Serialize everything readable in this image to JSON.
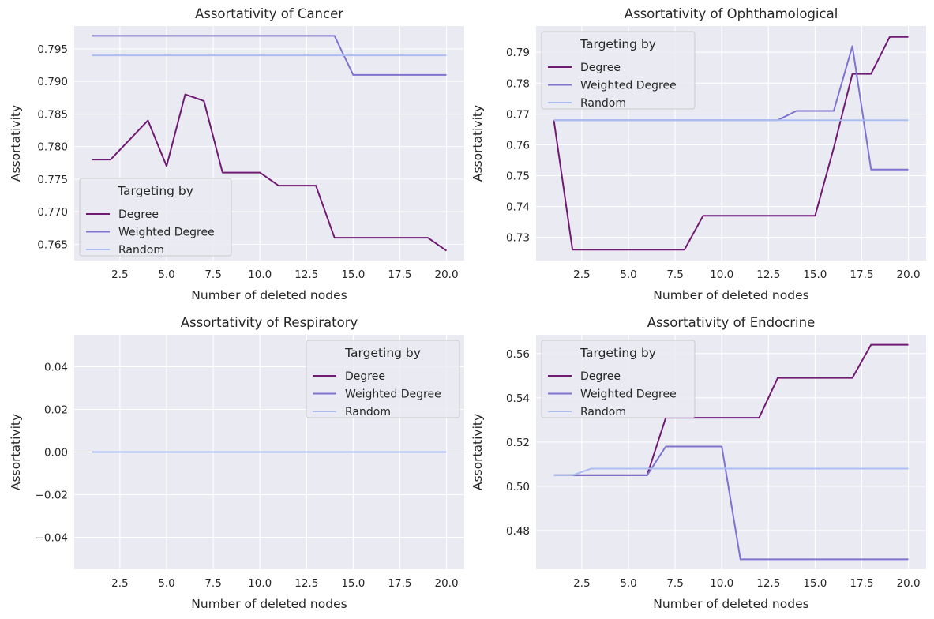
{
  "colors": {
    "Degree": "#701A72",
    "Weighted Degree": "#7E73CF",
    "Random": "#ACBDF1",
    "panel_bg": "#EAEAF2",
    "grid": "#FFFFFF"
  },
  "legend_title": "Targeting by",
  "chart_data": [
    {
      "type": "line",
      "title": "Assortativity of Cancer",
      "xlabel": "Number of deleted nodes",
      "ylabel": "Assortativity",
      "xlim": [
        0.05,
        20.95
      ],
      "ylim": [
        0.7625,
        0.7985
      ],
      "xticks": [
        2.5,
        5.0,
        7.5,
        10.0,
        12.5,
        15.0,
        17.5,
        20.0
      ],
      "xtick_labels": [
        "2.5",
        "5.0",
        "7.5",
        "10.0",
        "12.5",
        "15.0",
        "17.5",
        "20.0"
      ],
      "yticks": [
        0.765,
        0.77,
        0.775,
        0.78,
        0.785,
        0.79,
        0.795
      ],
      "ytick_labels": [
        "0.765",
        "0.770",
        "0.775",
        "0.780",
        "0.785",
        "0.790",
        "0.795"
      ],
      "grid": true,
      "legend_position": "lower-left",
      "x": [
        1,
        2,
        3,
        4,
        5,
        6,
        7,
        8,
        9,
        10,
        11,
        12,
        13,
        14,
        15,
        16,
        17,
        18,
        19,
        20
      ],
      "series": [
        {
          "name": "Degree",
          "values": [
            0.778,
            0.778,
            0.781,
            0.784,
            0.777,
            0.788,
            0.787,
            0.776,
            0.776,
            0.776,
            0.774,
            0.774,
            0.774,
            0.766,
            0.766,
            0.766,
            0.766,
            0.766,
            0.766,
            0.764
          ]
        },
        {
          "name": "Weighted Degree",
          "values": [
            0.797,
            0.797,
            0.797,
            0.797,
            0.797,
            0.797,
            0.797,
            0.797,
            0.797,
            0.797,
            0.797,
            0.797,
            0.797,
            0.797,
            0.791,
            0.791,
            0.791,
            0.791,
            0.791,
            0.791
          ]
        },
        {
          "name": "Random",
          "values": [
            0.794,
            0.794,
            0.794,
            0.794,
            0.794,
            0.794,
            0.794,
            0.794,
            0.794,
            0.794,
            0.794,
            0.794,
            0.794,
            0.794,
            0.794,
            0.794,
            0.794,
            0.794,
            0.794,
            0.794
          ]
        }
      ]
    },
    {
      "type": "line",
      "title": "Assortativity of Ophthamological",
      "xlabel": "Number of deleted nodes",
      "ylabel": "Assortativity",
      "xlim": [
        0.05,
        20.95
      ],
      "ylim": [
        0.7225,
        0.7985
      ],
      "xticks": [
        2.5,
        5.0,
        7.5,
        10.0,
        12.5,
        15.0,
        17.5,
        20.0
      ],
      "xtick_labels": [
        "2.5",
        "5.0",
        "7.5",
        "10.0",
        "12.5",
        "15.0",
        "17.5",
        "20.0"
      ],
      "yticks": [
        0.73,
        0.74,
        0.75,
        0.76,
        0.77,
        0.78,
        0.79
      ],
      "ytick_labels": [
        "0.73",
        "0.74",
        "0.75",
        "0.76",
        "0.77",
        "0.78",
        "0.79"
      ],
      "grid": true,
      "legend_position": "upper-left",
      "x": [
        1,
        2,
        3,
        4,
        5,
        6,
        7,
        8,
        9,
        10,
        11,
        12,
        13,
        14,
        15,
        16,
        17,
        18,
        19,
        20
      ],
      "series": [
        {
          "name": "Degree",
          "values": [
            0.768,
            0.726,
            0.726,
            0.726,
            0.726,
            0.726,
            0.726,
            0.726,
            0.737,
            0.737,
            0.737,
            0.737,
            0.737,
            0.737,
            0.737,
            0.759,
            0.783,
            0.783,
            0.795,
            0.795
          ]
        },
        {
          "name": "Weighted Degree",
          "values": [
            0.768,
            0.768,
            0.768,
            0.768,
            0.768,
            0.768,
            0.768,
            0.768,
            0.768,
            0.768,
            0.768,
            0.768,
            0.768,
            0.771,
            0.771,
            0.771,
            0.792,
            0.752,
            0.752,
            0.752
          ]
        },
        {
          "name": "Random",
          "values": [
            0.768,
            0.768,
            0.768,
            0.768,
            0.768,
            0.768,
            0.768,
            0.768,
            0.768,
            0.768,
            0.768,
            0.768,
            0.768,
            0.768,
            0.768,
            0.768,
            0.768,
            0.768,
            0.768,
            0.768
          ]
        }
      ]
    },
    {
      "type": "line",
      "title": "Assortativity of Respiratory",
      "xlabel": "Number of deleted nodes",
      "ylabel": "Assortativity",
      "xlim": [
        0.05,
        20.95
      ],
      "ylim": [
        -0.055,
        0.055
      ],
      "xticks": [
        2.5,
        5.0,
        7.5,
        10.0,
        12.5,
        15.0,
        17.5,
        20.0
      ],
      "xtick_labels": [
        "2.5",
        "5.0",
        "7.5",
        "10.0",
        "12.5",
        "15.0",
        "17.5",
        "20.0"
      ],
      "yticks": [
        -0.04,
        -0.02,
        0.0,
        0.02,
        0.04
      ],
      "ytick_labels": [
        "−0.04",
        "−0.02",
        "0.00",
        "0.02",
        "0.04"
      ],
      "grid": true,
      "legend_position": "upper-right",
      "x": [
        1,
        2,
        3,
        4,
        5,
        6,
        7,
        8,
        9,
        10,
        11,
        12,
        13,
        14,
        15,
        16,
        17,
        18,
        19,
        20
      ],
      "series": [
        {
          "name": "Degree",
          "values": [
            0,
            0,
            0,
            0,
            0,
            0,
            0,
            0,
            0,
            0,
            0,
            0,
            0,
            0,
            0,
            0,
            0,
            0,
            0,
            0
          ]
        },
        {
          "name": "Weighted Degree",
          "values": [
            0,
            0,
            0,
            0,
            0,
            0,
            0,
            0,
            0,
            0,
            0,
            0,
            0,
            0,
            0,
            0,
            0,
            0,
            0,
            0
          ]
        },
        {
          "name": "Random",
          "values": [
            0,
            0,
            0,
            0,
            0,
            0,
            0,
            0,
            0,
            0,
            0,
            0,
            0,
            0,
            0,
            0,
            0,
            0,
            0,
            0
          ]
        }
      ]
    },
    {
      "type": "line",
      "title": "Assortativity of Endocrine",
      "xlabel": "Number of deleted nodes",
      "ylabel": "Assortativity",
      "xlim": [
        0.05,
        20.95
      ],
      "ylim": [
        0.4625,
        0.5685
      ],
      "xticks": [
        2.5,
        5.0,
        7.5,
        10.0,
        12.5,
        15.0,
        17.5,
        20.0
      ],
      "xtick_labels": [
        "2.5",
        "5.0",
        "7.5",
        "10.0",
        "12.5",
        "15.0",
        "17.5",
        "20.0"
      ],
      "yticks": [
        0.48,
        0.5,
        0.52,
        0.54,
        0.56
      ],
      "ytick_labels": [
        "0.48",
        "0.50",
        "0.52",
        "0.54",
        "0.56"
      ],
      "grid": true,
      "legend_position": "upper-left",
      "x": [
        1,
        2,
        3,
        4,
        5,
        6,
        7,
        8,
        9,
        10,
        11,
        12,
        13,
        14,
        15,
        16,
        17,
        18,
        19,
        20
      ],
      "series": [
        {
          "name": "Degree",
          "values": [
            0.505,
            0.505,
            0.505,
            0.505,
            0.505,
            0.505,
            0.531,
            0.531,
            0.531,
            0.531,
            0.531,
            0.531,
            0.549,
            0.549,
            0.549,
            0.549,
            0.549,
            0.564,
            0.564,
            0.564
          ]
        },
        {
          "name": "Weighted Degree",
          "values": [
            0.505,
            0.505,
            0.505,
            0.505,
            0.505,
            0.505,
            0.518,
            0.518,
            0.518,
            0.518,
            0.467,
            0.467,
            0.467,
            0.467,
            0.467,
            0.467,
            0.467,
            0.467,
            0.467,
            0.467
          ]
        },
        {
          "name": "Random",
          "values": [
            0.505,
            0.505,
            0.508,
            0.508,
            0.508,
            0.508,
            0.508,
            0.508,
            0.508,
            0.508,
            0.508,
            0.508,
            0.508,
            0.508,
            0.508,
            0.508,
            0.508,
            0.508,
            0.508,
            0.508
          ]
        }
      ]
    }
  ]
}
